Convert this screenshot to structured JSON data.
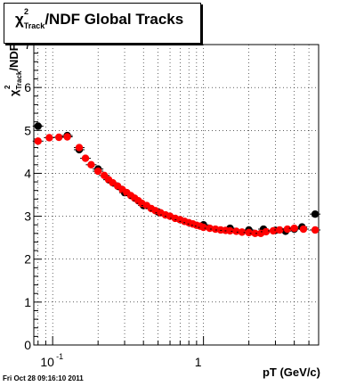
{
  "chart_data": {
    "type": "scatter",
    "title": {
      "chi": "χ",
      "sup": "2",
      "sub": "Track",
      "rest": "/NDF  Global Tracks"
    },
    "xlabel": "pT (GeV/c)",
    "ylabel": {
      "chi": "χ",
      "sup": "2",
      "sub": "Track",
      "rest": "/NDF"
    },
    "xscale": "log",
    "xlim": [
      0.075,
      5.8
    ],
    "ylim": [
      0,
      7
    ],
    "grid": true,
    "y_ticks": [
      "0",
      "1",
      "2",
      "3",
      "4",
      "5",
      "6",
      "7"
    ],
    "x_tick_labels": [
      {
        "value": 0.1,
        "base": "10",
        "exp": "-1"
      },
      {
        "value": 1,
        "base": "1",
        "exp": ""
      }
    ],
    "series": [
      {
        "color": "#000000",
        "points": [
          [
            0.08,
            5.1
          ],
          [
            0.125,
            4.88
          ],
          [
            0.15,
            4.55
          ],
          [
            0.2,
            4.1
          ],
          [
            0.3,
            3.55
          ],
          [
            0.4,
            3.25
          ],
          [
            0.5,
            3.1
          ],
          [
            0.7,
            2.92
          ],
          [
            1.0,
            2.8
          ],
          [
            1.5,
            2.72
          ],
          [
            2.0,
            2.68
          ],
          [
            2.5,
            2.7
          ],
          [
            3.0,
            2.67
          ],
          [
            3.5,
            2.65
          ],
          [
            4.0,
            2.7
          ],
          [
            4.5,
            2.75
          ],
          [
            5.5,
            3.05
          ]
        ]
      },
      {
        "color": "#ff0000",
        "points": [
          [
            0.08,
            4.75
          ],
          [
            0.095,
            4.83
          ],
          [
            0.11,
            4.84
          ],
          [
            0.125,
            4.85
          ],
          [
            0.15,
            4.6
          ],
          [
            0.165,
            4.35
          ],
          [
            0.18,
            4.2
          ],
          [
            0.2,
            4.05
          ],
          [
            0.22,
            3.95
          ],
          [
            0.235,
            3.85
          ],
          [
            0.25,
            3.78
          ],
          [
            0.27,
            3.7
          ],
          [
            0.29,
            3.62
          ],
          [
            0.31,
            3.55
          ],
          [
            0.33,
            3.48
          ],
          [
            0.35,
            3.42
          ],
          [
            0.37,
            3.36
          ],
          [
            0.39,
            3.3
          ],
          [
            0.42,
            3.25
          ],
          [
            0.45,
            3.18
          ],
          [
            0.48,
            3.13
          ],
          [
            0.52,
            3.08
          ],
          [
            0.56,
            3.03
          ],
          [
            0.6,
            3.0
          ],
          [
            0.65,
            2.95
          ],
          [
            0.7,
            2.92
          ],
          [
            0.75,
            2.88
          ],
          [
            0.8,
            2.85
          ],
          [
            0.85,
            2.82
          ],
          [
            0.9,
            2.79
          ],
          [
            0.95,
            2.77
          ],
          [
            1.0,
            2.74
          ],
          [
            1.1,
            2.72
          ],
          [
            1.2,
            2.7
          ],
          [
            1.3,
            2.68
          ],
          [
            1.4,
            2.67
          ],
          [
            1.5,
            2.66
          ],
          [
            1.65,
            2.65
          ],
          [
            1.8,
            2.63
          ],
          [
            2.0,
            2.62
          ],
          [
            2.2,
            2.6
          ],
          [
            2.4,
            2.6
          ],
          [
            2.6,
            2.64
          ],
          [
            2.9,
            2.66
          ],
          [
            3.2,
            2.68
          ],
          [
            3.6,
            2.7
          ],
          [
            4.0,
            2.72
          ],
          [
            4.6,
            2.7
          ],
          [
            5.5,
            2.68
          ]
        ]
      }
    ]
  },
  "footer": "Fri Oct 28 09:16:10 2011"
}
